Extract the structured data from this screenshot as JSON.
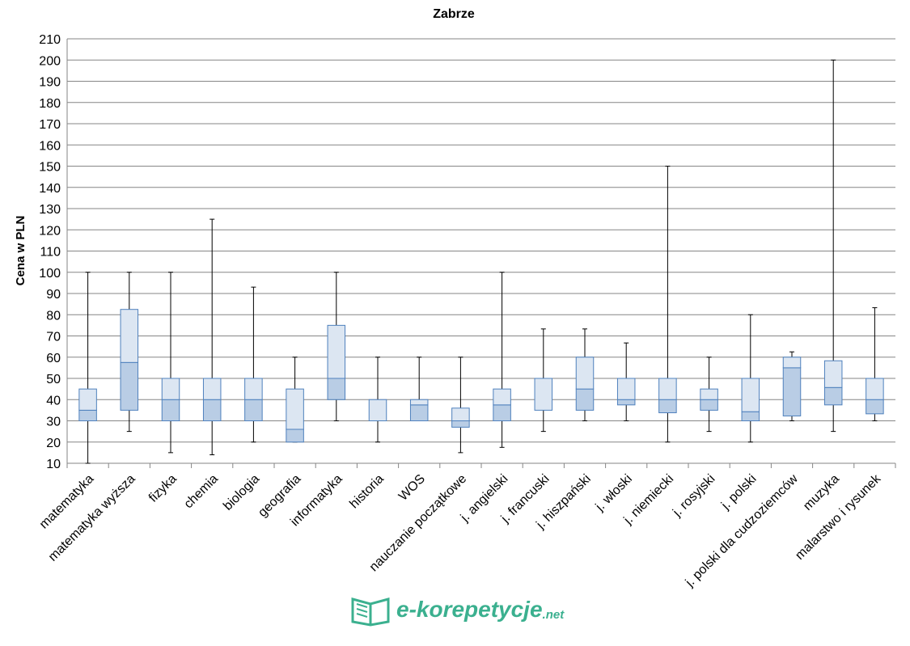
{
  "chart_data": {
    "type": "boxplot",
    "title": "Zabrze",
    "xlabel": "",
    "ylabel": "Cena w PLN",
    "ylim": [
      10,
      210
    ],
    "yticks": [
      10,
      20,
      30,
      40,
      50,
      60,
      70,
      80,
      90,
      100,
      110,
      120,
      130,
      140,
      150,
      160,
      170,
      180,
      190,
      200,
      210
    ],
    "grid": true,
    "categories": [
      "matematyka",
      "matematyka wyższa",
      "fizyka",
      "chemia",
      "biologia",
      "geografia",
      "informatyka",
      "historia",
      "WOS",
      "nauczanie początkowe",
      "j. angielski",
      "j. francuski",
      "j. hiszpański",
      "j. włoski",
      "j. niemiecki",
      "j. rosyjski",
      "j. polski",
      "j. polski dla cudzoziemców",
      "muzyka",
      "malarstwo i rysunek"
    ],
    "series": [
      {
        "name": "min",
        "values": [
          10,
          25,
          15,
          14,
          20,
          20,
          30,
          20,
          30,
          15,
          17.5,
          25,
          30,
          30,
          20,
          25,
          20,
          30,
          25,
          30
        ]
      },
      {
        "name": "q1",
        "values": [
          30,
          35,
          30,
          30,
          30,
          20,
          40,
          30,
          30,
          27,
          30,
          35,
          35,
          37.5,
          33.8,
          35,
          30,
          32.3,
          37.5,
          33.3
        ]
      },
      {
        "name": "median",
        "values": [
          35,
          57.5,
          40,
          40,
          40,
          26,
          50,
          30,
          37.5,
          30,
          37.5,
          35,
          45,
          40,
          40,
          40,
          34.3,
          55,
          45.7,
          40
        ]
      },
      {
        "name": "q3",
        "values": [
          45,
          82.5,
          50,
          50,
          50,
          45,
          75,
          40,
          40,
          36,
          45,
          50,
          60,
          50,
          50,
          45,
          50,
          60,
          58.3,
          50
        ]
      },
      {
        "name": "max",
        "values": [
          100,
          100,
          100,
          125,
          93,
          60,
          100,
          60,
          60,
          60,
          100,
          73.3,
          73.3,
          66.7,
          150,
          60,
          80,
          62.5,
          200,
          83.3
        ]
      }
    ],
    "colors": {
      "lower_box": "#b9cde5",
      "upper_box": "#dce6f2",
      "box_stroke": "#4f81bd",
      "grid": "#868686"
    }
  },
  "logo": {
    "text": "e-korepetycje",
    "suffix": ".net"
  }
}
